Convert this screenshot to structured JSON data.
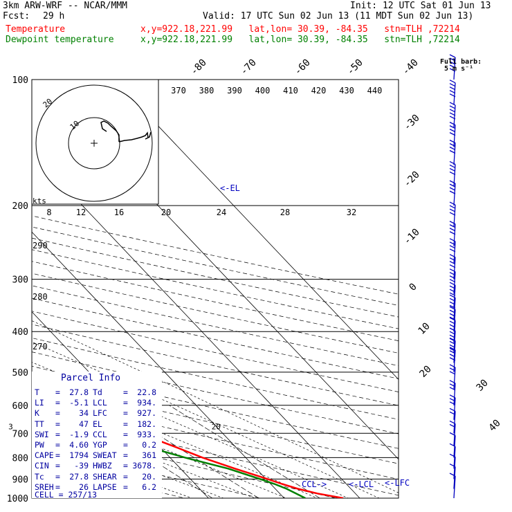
{
  "header": {
    "title": "3km ARW-WRF -- NCAR/MMM",
    "init": "Init: 12 UTC Sat 01 Jun 13",
    "fcst_label": "Fcst:",
    "fcst_value": "29 h",
    "valid": "Valid: 17 UTC Sun 02 Jun 13 (11 MDT Sun 02 Jun 13)",
    "temperature_label": "Temperature",
    "temperature_loc": "x,y=922.18,221.99   lat,lon= 30.39, -84.35   stn=TLH ,72214",
    "dewpoint_label": "Dewpoint temperature",
    "dewpoint_loc": "x,y=922.18,221.99   lat,lon= 30.39, -84.35   stn=TLH ,72214"
  },
  "barb_key": {
    "title": "Full barb:",
    "value": "5 m s⁻¹"
  },
  "parcel_info": {
    "title": "Parcel Info",
    "rows": [
      [
        "T",
        "27.8",
        "Td",
        "22.8"
      ],
      [
        "LI",
        "-5.1",
        "LCL",
        "934."
      ],
      [
        "K",
        "34",
        "LFC",
        "927."
      ],
      [
        "TT",
        "47",
        "EL",
        "182."
      ],
      [
        "SWI",
        "-1.9",
        "CCL",
        "933."
      ],
      [
        "PW",
        "4.60",
        "YGP",
        "0.2"
      ],
      [
        "CAPE",
        "1794",
        "SWEAT",
        "361"
      ],
      [
        "CIN",
        "-39",
        "HWBZ",
        "3678."
      ],
      [
        "Tc",
        "27.8",
        "SHEAR",
        "20."
      ],
      [
        "SREH",
        "26",
        "LAPSE",
        "6.2"
      ]
    ],
    "cell": "CELL = 257/13"
  },
  "hodograph": {
    "kts_label": "kts",
    "ring_label_inner": "10",
    "ring_label_outer": "20"
  },
  "markers": {
    "el": "<-EL",
    "ccl": "CCL->",
    "lcl": "<-LCL",
    "lfc": "<-LFC"
  },
  "chart_data": {
    "type": "line",
    "title": "",
    "xlabel": "",
    "ylabel": "",
    "y_scale": "log-pressure",
    "ylim": [
      1000,
      100
    ],
    "pressure_levels": [
      100,
      200,
      300,
      400,
      500,
      600,
      700,
      800,
      900,
      1000
    ],
    "isotherm_labels": [
      -80,
      -70,
      -60,
      -50,
      -40,
      -30,
      -20,
      -10,
      0,
      10,
      20,
      30,
      40
    ],
    "theta_labels": [
      370,
      380,
      390,
      400,
      410,
      420,
      430,
      440
    ],
    "upper_axis_labels": [
      8,
      12,
      16,
      20,
      24,
      28,
      32
    ],
    "dry_adiabat_labels": [
      290,
      280,
      270
    ],
    "mixing_ratio_labels": [
      2,
      3,
      5,
      8,
      12,
      20
    ],
    "series": [
      {
        "name": "Temperature",
        "color": "#ff0000",
        "pressure": [
          1000,
          975,
          950,
          925,
          900,
          850,
          800,
          750,
          700,
          650,
          600,
          550,
          500,
          450,
          400,
          350,
          300,
          250,
          200,
          175,
          150,
          125,
          100
        ],
        "temperature": [
          27.8,
          25.0,
          23.0,
          21.5,
          20.2,
          17.2,
          14.3,
          11.8,
          9.0,
          5.8,
          2.0,
          -2.0,
          -6.0,
          -11.2,
          -17.0,
          -24.3,
          -32.6,
          -42.5,
          -55.0,
          -62.0,
          -71.0,
          -72.5,
          -68.0
        ]
      },
      {
        "name": "Dewpoint temperature",
        "color": "#008000",
        "pressure": [
          1000,
          950,
          925,
          900,
          850,
          800,
          750,
          700,
          650,
          600,
          550,
          500,
          450,
          400,
          350,
          300,
          250,
          200,
          175,
          150,
          125,
          100
        ],
        "temperature": [
          22.8,
          21.5,
          20.5,
          19.2,
          16.3,
          12.0,
          8.0,
          3.0,
          -4.0,
          -11.5,
          -22.0,
          -31.0,
          -38.0,
          -42.0,
          -49.0,
          -55.0,
          -61.0,
          -67.0,
          -73.0,
          -78.0,
          -82.0,
          -84.0
        ]
      }
    ],
    "wind_barbs": {
      "pressure": [
        100,
        115,
        130,
        145,
        160,
        180,
        200,
        225,
        250,
        275,
        300,
        325,
        350,
        375,
        400,
        425,
        450,
        475,
        500,
        550,
        600,
        650,
        700,
        750,
        800,
        850,
        900,
        950,
        1000
      ],
      "speed_ms": [
        25,
        25,
        25,
        20,
        20,
        20,
        20,
        20,
        20,
        20,
        20,
        20,
        20,
        20,
        20,
        20,
        20,
        20,
        20,
        15,
        15,
        15,
        10,
        10,
        5,
        5,
        5,
        5,
        5
      ]
    }
  }
}
